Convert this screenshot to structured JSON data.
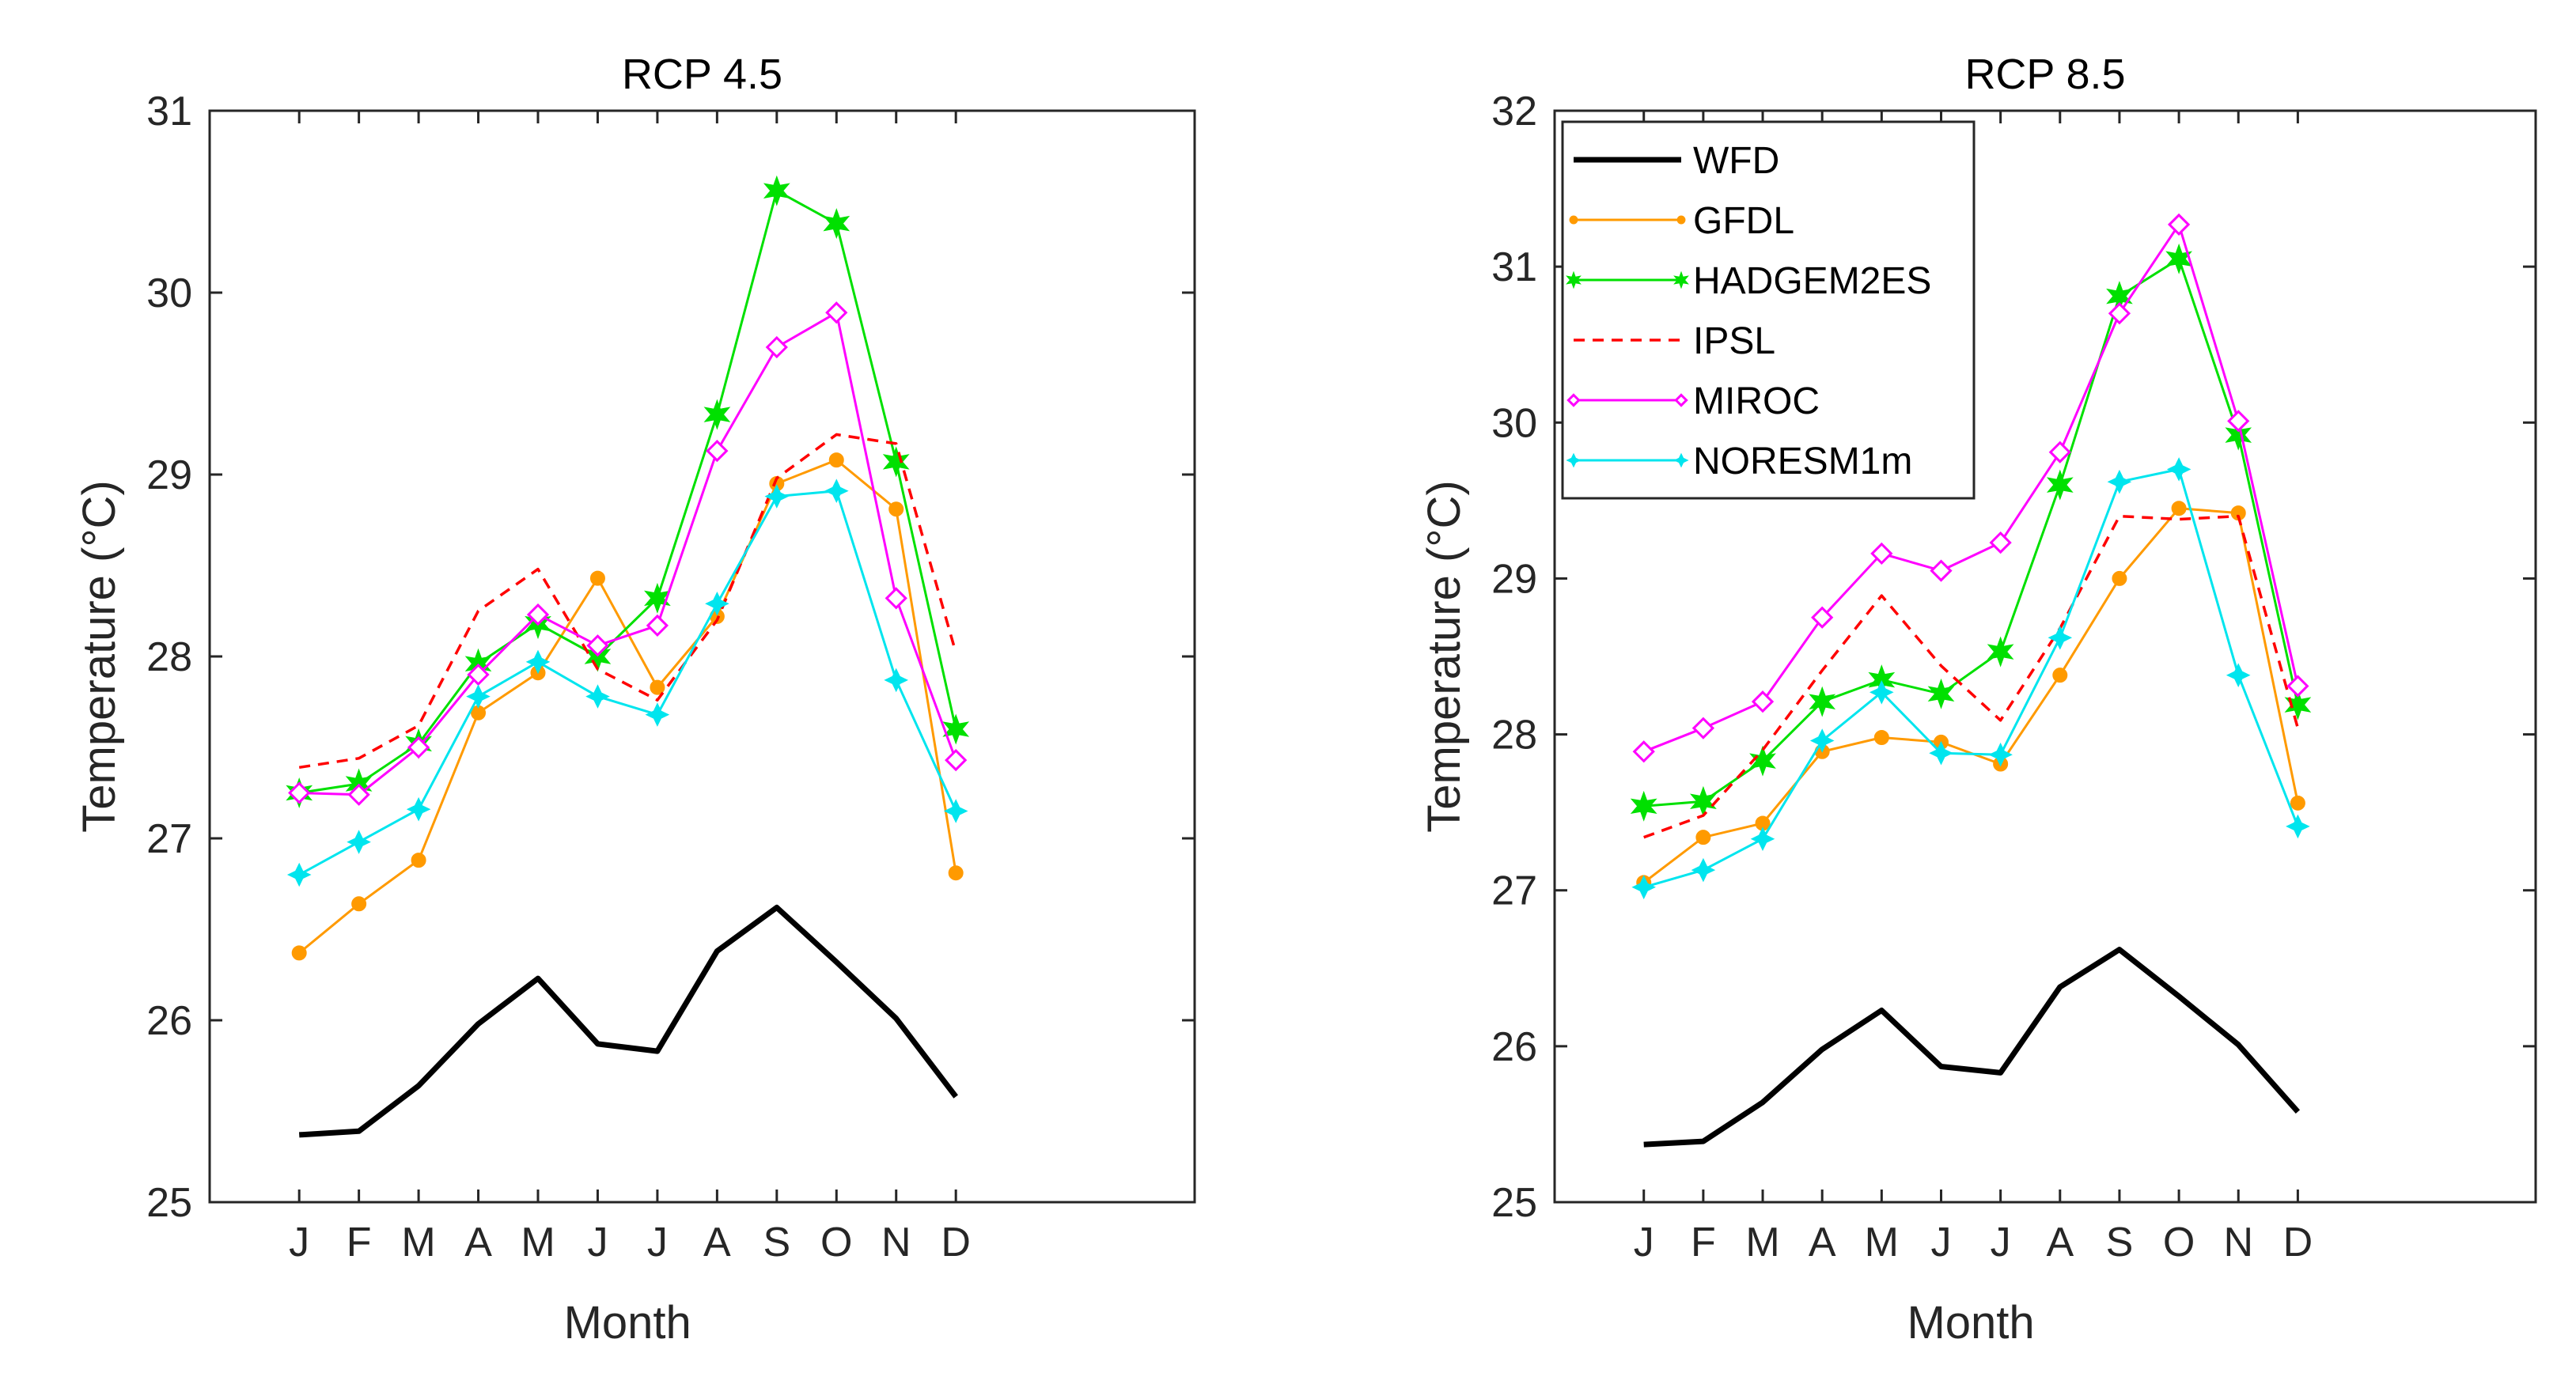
{
  "chart_data": [
    {
      "type": "line",
      "title": "RCP 4.5",
      "xlabel": "Month",
      "ylabel": "Temperature (°C)",
      "categories": [
        "J",
        "F",
        "M",
        "A",
        "M",
        "J",
        "J",
        "A",
        "S",
        "O",
        "N",
        "D"
      ],
      "ylim": [
        25,
        31
      ],
      "yticks": [
        25,
        26,
        27,
        28,
        29,
        30,
        31
      ],
      "xlim_index": [
        -1.5,
        15.0
      ],
      "grid": false,
      "legend": null,
      "series": [
        {
          "name": "WFD",
          "color": "#000000",
          "style": "solid",
          "marker": "none",
          "values": [
            25.37,
            25.39,
            25.64,
            25.98,
            26.23,
            25.87,
            25.83,
            26.38,
            26.62,
            26.32,
            26.01,
            25.58
          ]
        },
        {
          "name": "GFDL",
          "color": "#FF9A00",
          "style": "solid",
          "marker": "dot",
          "values": [
            26.37,
            26.64,
            26.88,
            27.69,
            27.91,
            28.43,
            27.83,
            28.22,
            28.95,
            29.08,
            28.81,
            26.81
          ]
        },
        {
          "name": "HADGEM2ES",
          "color": "#00E000",
          "style": "solid",
          "marker": "hexagram",
          "values": [
            27.25,
            27.3,
            27.52,
            27.96,
            28.18,
            28.0,
            28.32,
            29.33,
            30.56,
            30.38,
            29.07,
            27.6
          ]
        },
        {
          "name": "IPSL",
          "color": "#FF0000",
          "style": "dashed",
          "marker": "none",
          "values": [
            27.39,
            27.44,
            27.62,
            28.25,
            28.48,
            27.93,
            27.76,
            28.2,
            28.98,
            29.22,
            29.17,
            28.02
          ]
        },
        {
          "name": "MIROC",
          "color": "#FF00FF",
          "style": "solid",
          "marker": "diamond",
          "values": [
            27.25,
            27.24,
            27.5,
            27.9,
            28.23,
            28.06,
            28.17,
            29.13,
            29.7,
            29.89,
            28.32,
            27.43
          ]
        },
        {
          "name": "NORESM1m",
          "color": "#00E5EE",
          "style": "solid",
          "marker": "star",
          "values": [
            26.8,
            26.98,
            27.16,
            27.78,
            27.97,
            27.78,
            27.68,
            28.29,
            28.88,
            28.91,
            27.87,
            27.15
          ]
        }
      ]
    },
    {
      "type": "line",
      "title": "RCP 8.5",
      "xlabel": "Month",
      "ylabel": "Temperature (°C)",
      "categories": [
        "J",
        "F",
        "M",
        "A",
        "M",
        "J",
        "J",
        "A",
        "S",
        "O",
        "N",
        "D"
      ],
      "ylim": [
        25,
        32
      ],
      "yticks": [
        25,
        26,
        27,
        28,
        29,
        30,
        31,
        32
      ],
      "xlim_index": [
        -1.5,
        15.0
      ],
      "grid": false,
      "legend": "top-left",
      "series": [
        {
          "name": "WFD",
          "color": "#000000",
          "style": "solid",
          "marker": "none",
          "values": [
            25.37,
            25.39,
            25.64,
            25.98,
            26.23,
            25.87,
            25.83,
            26.38,
            26.62,
            26.32,
            26.01,
            25.58
          ]
        },
        {
          "name": "GFDL",
          "color": "#FF9A00",
          "style": "solid",
          "marker": "dot",
          "values": [
            27.05,
            27.34,
            27.43,
            27.89,
            27.98,
            27.95,
            27.81,
            28.38,
            29.0,
            29.45,
            29.42,
            27.56
          ]
        },
        {
          "name": "HADGEM2ES",
          "color": "#00E000",
          "style": "solid",
          "marker": "hexagram",
          "values": [
            27.54,
            27.57,
            27.83,
            28.21,
            28.35,
            28.26,
            28.53,
            29.6,
            30.81,
            31.05,
            29.92,
            28.19
          ]
        },
        {
          "name": "IPSL",
          "color": "#FF0000",
          "style": "dashed",
          "marker": "none",
          "values": [
            27.34,
            27.48,
            27.9,
            28.41,
            28.89,
            28.44,
            28.09,
            28.68,
            29.4,
            29.38,
            29.4,
            28.04
          ]
        },
        {
          "name": "MIROC",
          "color": "#FF00FF",
          "style": "solid",
          "marker": "diamond",
          "values": [
            27.89,
            28.04,
            28.21,
            28.75,
            29.16,
            29.05,
            29.23,
            29.81,
            30.7,
            31.27,
            30.01,
            28.31
          ]
        },
        {
          "name": "NORESM1m",
          "color": "#00E5EE",
          "style": "solid",
          "marker": "star",
          "values": [
            27.02,
            27.13,
            27.33,
            27.96,
            28.27,
            27.88,
            27.87,
            28.62,
            29.62,
            29.7,
            28.38,
            27.41
          ]
        }
      ]
    }
  ]
}
